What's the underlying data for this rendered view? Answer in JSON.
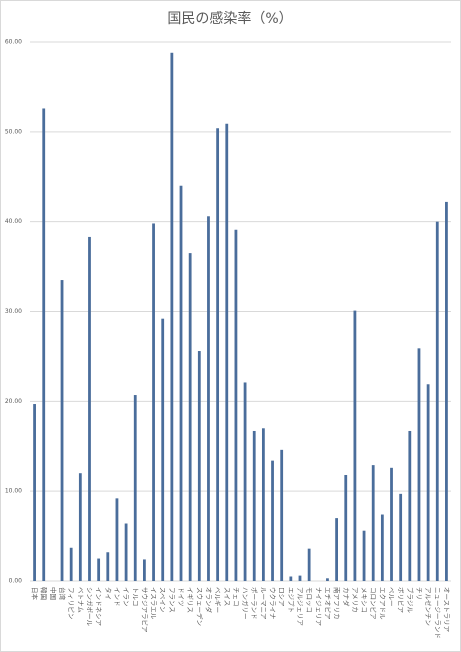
{
  "chart_data": {
    "type": "bar",
    "title": "国民の感染率（%）",
    "categories": [
      "日本",
      "韓国",
      "中国",
      "台湾",
      "フィリピン",
      "ベトナム",
      "シンガポール",
      "インドネシア",
      "タイ",
      "インド",
      "イラン",
      "トルコ",
      "サウジアラビア",
      "イスラエル",
      "スペイン",
      "フランス",
      "ドイツ",
      "イギリス",
      "スウェーデン",
      "オランダ",
      "ベルギー",
      "スイス",
      "チェコ",
      "ハンガリー",
      "ポーランド",
      "ルーマニア",
      "ウクライナ",
      "ロシア",
      "エジプト",
      "アルジェリア",
      "モロッコ",
      "ナイジェリア",
      "エチオピア",
      "南アフリカ",
      "カナダ",
      "アメリカ",
      "メキシコ",
      "コロンビア",
      "エクアドル",
      "ペルー",
      "ボリビア",
      "ブラジル",
      "チリ",
      "アルゼンチン",
      "ニュージーランド",
      "オーストラリア"
    ],
    "values": [
      19.7,
      52.6,
      0,
      33.5,
      3.7,
      12,
      38.3,
      2.5,
      3.2,
      9.2,
      6.4,
      20.7,
      2.4,
      39.8,
      29.2,
      58.8,
      44,
      36.5,
      25.6,
      40.6,
      50.4,
      50.9,
      39.1,
      22.1,
      16.7,
      17,
      13.4,
      14.6,
      0.5,
      0.6,
      3.6,
      0,
      0.3,
      7,
      11.8,
      30.1,
      5.6,
      12.9,
      7.4,
      12.6,
      9.7,
      16.7,
      25.9,
      21.9,
      40,
      42.2
    ],
    "color": "#4a6d9b",
    "ylim": [
      0,
      60
    ],
    "yticks": [
      {
        "value": 0,
        "label": "0.00"
      },
      {
        "value": 10,
        "label": "10.00"
      },
      {
        "value": 20,
        "label": "20.00"
      },
      {
        "value": 30,
        "label": "30.00"
      },
      {
        "value": 40,
        "label": "40.00"
      },
      {
        "value": 50,
        "label": "50.00"
      },
      {
        "value": 60,
        "label": "60.00"
      }
    ],
    "grid": true
  }
}
